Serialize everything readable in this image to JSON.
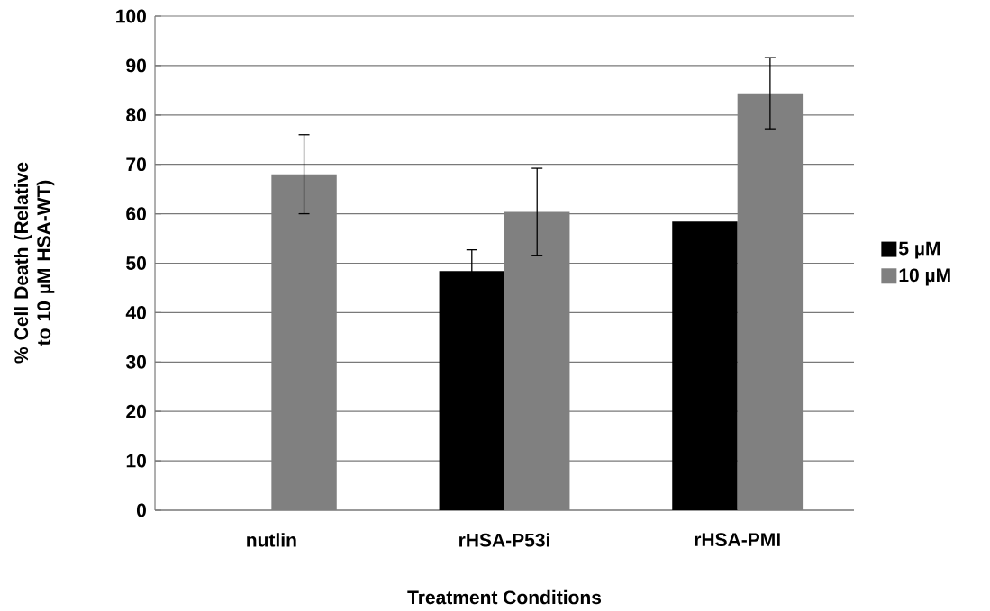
{
  "chart_data": {
    "type": "bar",
    "xlabel": "Treatment Conditions",
    "ylabel": "% Cell Death (Relative to 10 µM HSA-WT)",
    "categories": [
      "nutlin",
      "rHSA-P53i",
      "rHSA-PMI"
    ],
    "series": [
      {
        "name": "5 µM",
        "color": "#000000",
        "values": [
          null,
          48.4,
          58.4
        ],
        "errors": [
          null,
          4.3,
          null
        ]
      },
      {
        "name": "10 µM",
        "color": "#808080",
        "values": [
          68,
          60.4,
          84.4
        ],
        "errors": [
          8,
          8.8,
          7.2
        ]
      }
    ],
    "ylim": [
      0,
      100
    ],
    "yticks": [
      0,
      10,
      20,
      30,
      40,
      50,
      60,
      70,
      80,
      90,
      100
    ],
    "grid": "y",
    "legend": "right"
  }
}
